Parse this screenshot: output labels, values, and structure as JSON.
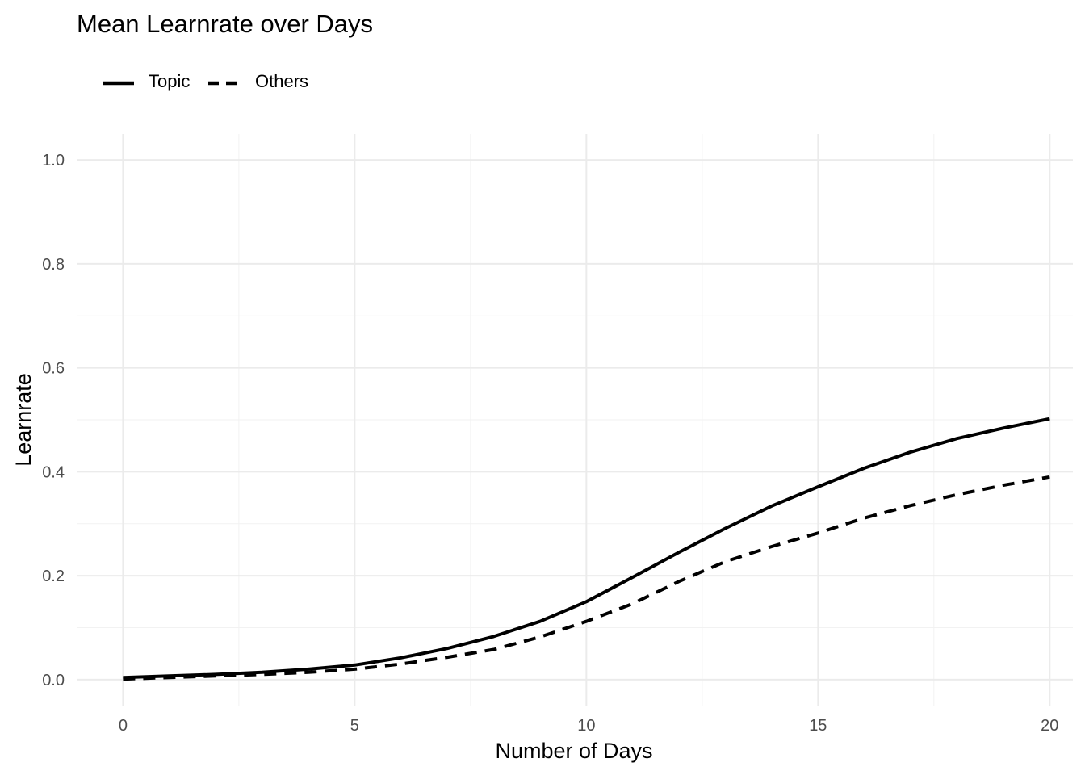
{
  "chart_data": {
    "type": "line",
    "title": "Mean Learnrate over Days",
    "xlabel": "Number of Days",
    "ylabel": "Learnrate",
    "xlim": [
      -1,
      20.5
    ],
    "ylim": [
      -0.05,
      1.05
    ],
    "x_ticks": [
      0,
      5,
      10,
      15,
      20
    ],
    "x_tick_labels": [
      "0",
      "5",
      "10",
      "15",
      "20"
    ],
    "y_ticks": [
      0.0,
      0.2,
      0.4,
      0.6,
      0.8,
      1.0
    ],
    "y_tick_labels": [
      "0.0",
      "0.2",
      "0.4",
      "0.6",
      "0.8",
      "1.0"
    ],
    "grid": true,
    "legend_position": "top-left",
    "x": [
      0,
      1,
      2,
      3,
      4,
      5,
      6,
      7,
      8,
      9,
      10,
      11,
      12,
      13,
      14,
      15,
      16,
      17,
      18,
      19,
      20
    ],
    "series": [
      {
        "name": "Topic",
        "line_style": "solid",
        "color": "#000000",
        "values": [
          0.004,
          0.007,
          0.01,
          0.014,
          0.02,
          0.028,
          0.042,
          0.06,
          0.083,
          0.112,
          0.15,
          0.197,
          0.245,
          0.291,
          0.334,
          0.371,
          0.407,
          0.438,
          0.464,
          0.484,
          0.502
        ]
      },
      {
        "name": "Others",
        "line_style": "dashed",
        "color": "#000000",
        "values": [
          0.001,
          0.004,
          0.007,
          0.01,
          0.014,
          0.02,
          0.03,
          0.043,
          0.058,
          0.082,
          0.112,
          0.146,
          0.189,
          0.227,
          0.256,
          0.282,
          0.311,
          0.335,
          0.356,
          0.374,
          0.39
        ]
      }
    ]
  }
}
